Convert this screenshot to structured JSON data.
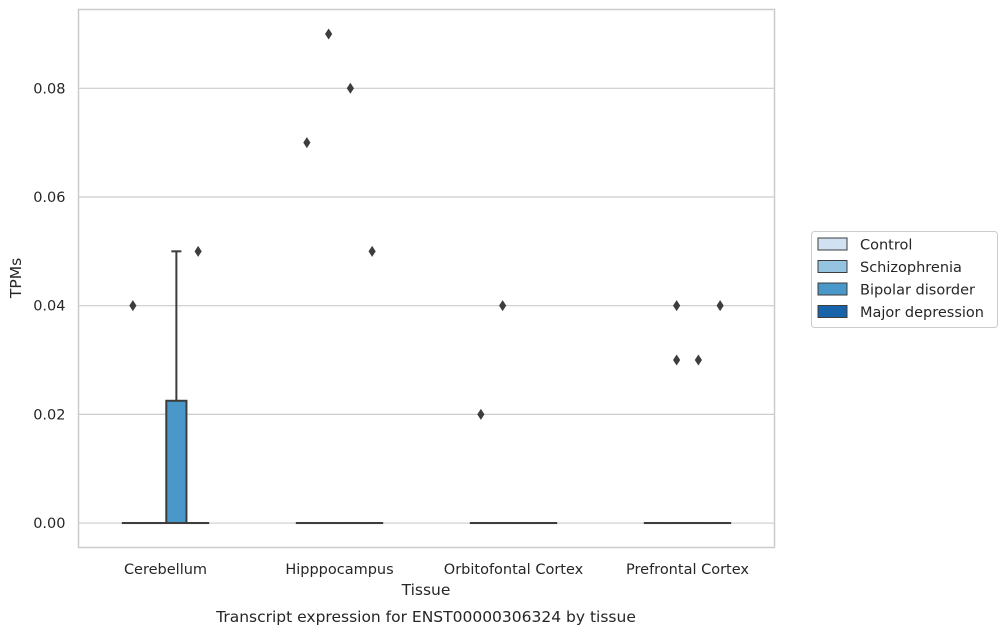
{
  "chart_data": {
    "type": "box",
    "title": "",
    "caption": "Transcript expression for ENST00000306324 by tissue",
    "xlabel": "Tissue",
    "ylabel": "TPMs",
    "ylim": [
      -0.0045,
      0.0945
    ],
    "yticks": [
      0.0,
      0.02,
      0.04,
      0.06,
      0.08
    ],
    "ytick_labels": [
      "0.00",
      "0.02",
      "0.04",
      "0.06",
      "0.08"
    ],
    "grid": true,
    "legend_position": "right",
    "categories": [
      "Cerebellum",
      "Hipppocampus",
      "Orbitofontal Cortex",
      "Prefrontal Cortex"
    ],
    "series": [
      {
        "name": "Control",
        "color": "#d0e1f2",
        "boxes": [
          {
            "q1": 0,
            "median": 0,
            "q3": 0,
            "whisker_low": 0,
            "whisker_high": 0,
            "outliers": [
              0.04
            ]
          },
          {
            "q1": 0,
            "median": 0,
            "q3": 0,
            "whisker_low": 0,
            "whisker_high": 0,
            "outliers": [
              0.07
            ]
          },
          {
            "q1": 0,
            "median": 0,
            "q3": 0,
            "whisker_low": 0,
            "whisker_high": 0,
            "outliers": [
              0.02
            ]
          },
          {
            "q1": 0,
            "median": 0,
            "q3": 0,
            "whisker_low": 0,
            "whisker_high": 0,
            "outliers": []
          }
        ]
      },
      {
        "name": "Schizophrenia",
        "color": "#94c4df",
        "boxes": [
          {
            "q1": 0,
            "median": 0,
            "q3": 0,
            "whisker_low": 0,
            "whisker_high": 0,
            "outliers": []
          },
          {
            "q1": 0,
            "median": 0,
            "q3": 0,
            "whisker_low": 0,
            "whisker_high": 0,
            "outliers": [
              0.09
            ]
          },
          {
            "q1": 0,
            "median": 0,
            "q3": 0,
            "whisker_low": 0,
            "whisker_high": 0,
            "outliers": [
              0.04
            ]
          },
          {
            "q1": 0,
            "median": 0,
            "q3": 0,
            "whisker_low": 0,
            "whisker_high": 0,
            "outliers": [
              0.03,
              0.04
            ]
          }
        ]
      },
      {
        "name": "Bipolar disorder",
        "color": "#4a98c9",
        "boxes": [
          {
            "q1": 0,
            "median": 0,
            "q3": 0.0225,
            "whisker_low": 0,
            "whisker_high": 0.05,
            "outliers": []
          },
          {
            "q1": 0,
            "median": 0,
            "q3": 0,
            "whisker_low": 0,
            "whisker_high": 0,
            "outliers": [
              0.08
            ]
          },
          {
            "q1": 0,
            "median": 0,
            "q3": 0,
            "whisker_low": 0,
            "whisker_high": 0,
            "outliers": []
          },
          {
            "q1": 0,
            "median": 0,
            "q3": 0,
            "whisker_low": 0,
            "whisker_high": 0,
            "outliers": [
              0.03
            ]
          }
        ]
      },
      {
        "name": "Major depression",
        "color": "#1764ab",
        "boxes": [
          {
            "q1": 0,
            "median": 0,
            "q3": 0,
            "whisker_low": 0,
            "whisker_high": 0,
            "outliers": [
              0.05
            ]
          },
          {
            "q1": 0,
            "median": 0,
            "q3": 0,
            "whisker_low": 0,
            "whisker_high": 0,
            "outliers": [
              0.05
            ]
          },
          {
            "q1": 0,
            "median": 0,
            "q3": 0,
            "whisker_low": 0,
            "whisker_high": 0,
            "outliers": []
          },
          {
            "q1": 0,
            "median": 0,
            "q3": 0,
            "whisker_low": 0,
            "whisker_high": 0,
            "outliers": [
              0.04
            ]
          }
        ]
      }
    ]
  }
}
